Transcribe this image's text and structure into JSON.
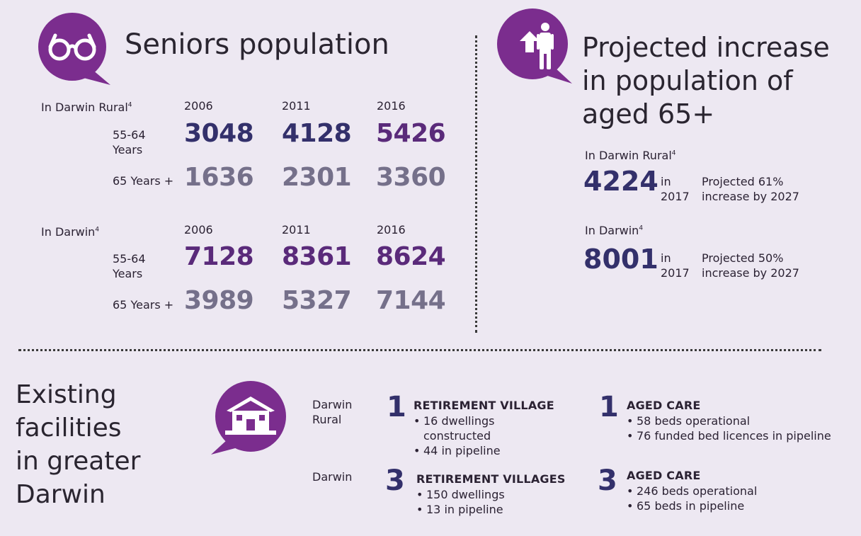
{
  "seniors": {
    "title": "Seniors population",
    "icon": "glasses-icon",
    "accent": "#7b2d8e",
    "groups": [
      {
        "label": "In Darwin Rural",
        "sup": "4",
        "years": [
          "2006",
          "2011",
          "2016"
        ],
        "rows": [
          {
            "label_line1": "55-64",
            "label_line2": "Years",
            "values": [
              "3048",
              "4128",
              "5426"
            ]
          },
          {
            "label_line1": "65 Years +",
            "label_line2": "",
            "values": [
              "1636",
              "2301",
              "3360"
            ]
          }
        ]
      },
      {
        "label": "In Darwin",
        "sup": "4",
        "years": [
          "2006",
          "2011",
          "2016"
        ],
        "rows": [
          {
            "label_line1": "55-64",
            "label_line2": "Years",
            "values": [
              "7128",
              "8361",
              "8624"
            ]
          },
          {
            "label_line1": "65 Years +",
            "label_line2": "",
            "values": [
              "3989",
              "5327",
              "7144"
            ]
          }
        ]
      }
    ]
  },
  "projected": {
    "title_line1": "Projected increase",
    "title_line2": "in population of",
    "title_line3": "aged 65+",
    "icon": "person-up-arrow-icon",
    "items": [
      {
        "label": "In Darwin Rural",
        "sup": "4",
        "value": "4224",
        "in": "in",
        "year": "2017",
        "note_line1": "Projected 61%",
        "note_line2": "increase by 2027"
      },
      {
        "label": "In Darwin",
        "sup": "4",
        "value": "8001",
        "in": "in",
        "year": "2017",
        "note_line1": "Projected 50%",
        "note_line2": "increase by 2027"
      }
    ]
  },
  "facilities": {
    "title_line1": "Existing",
    "title_line2": "facilities",
    "title_line3": "in greater",
    "title_line4": "Darwin",
    "icon": "house-icon",
    "rows": [
      {
        "region_line1": "Darwin",
        "region_line2": "Rural",
        "village": {
          "count": "1",
          "title": "RETIREMENT VILLAGE",
          "items": [
            "16 dwellings",
            "constructed",
            "44 in pipeline"
          ]
        },
        "care": {
          "count": "1",
          "title": "AGED CARE",
          "items": [
            "58 beds operational",
            "76 funded bed licences in pipeline"
          ]
        }
      },
      {
        "region_line1": "Darwin",
        "region_line2": "",
        "village": {
          "count": "3",
          "title": "RETIREMENT VILLAGES",
          "items": [
            "150 dwellings",
            "13 in pipeline"
          ]
        },
        "care": {
          "count": "3",
          "title": "AGED CARE",
          "items": [
            "246 beds operational",
            "65 beds in pipeline"
          ]
        }
      }
    ]
  }
}
